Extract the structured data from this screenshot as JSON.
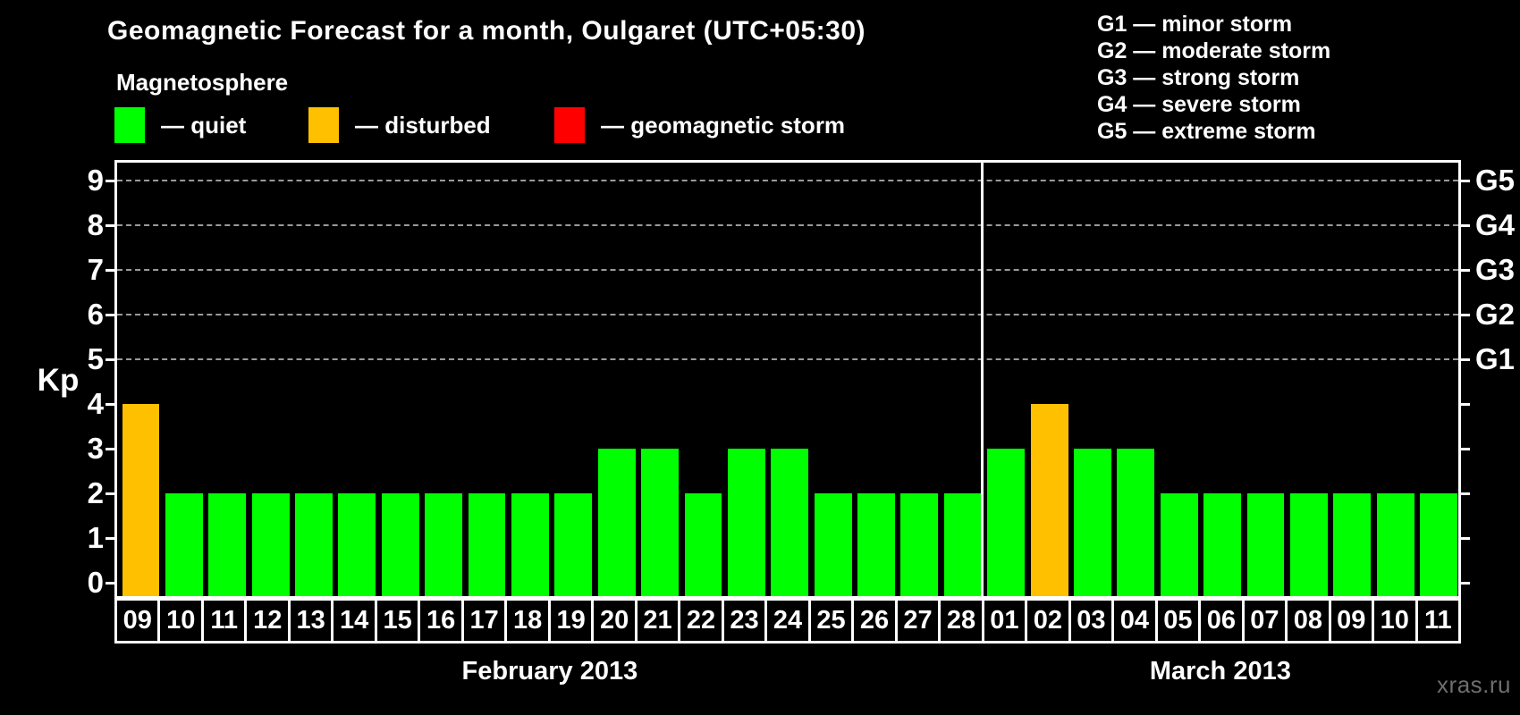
{
  "header": {
    "title": "Geomagnetic Forecast for a month, Oulgaret (UTC+05:30)",
    "subtitle": "Magnetosphere"
  },
  "magnetosphere_legend": [
    {
      "status": "quiet",
      "label": "— quiet",
      "color": "#00FF00"
    },
    {
      "status": "disturbed",
      "label": "— disturbed",
      "color": "#FFC000"
    },
    {
      "status": "storm",
      "label": "— geomagnetic storm",
      "color": "#FF0000"
    }
  ],
  "storm_scale_legend": [
    "G1 — minor storm",
    "G2 — moderate storm",
    "G3 — strong storm",
    "G4 — severe storm",
    "G5 — extreme storm"
  ],
  "watermark": "xras.ru",
  "chart_data": {
    "type": "bar",
    "ylabel": "Kp",
    "ylim": [
      0,
      9
    ],
    "yticks": [
      0,
      1,
      2,
      3,
      4,
      5,
      6,
      7,
      8,
      9
    ],
    "gridlines_at": [
      5,
      6,
      7,
      8,
      9
    ],
    "grid_style": "dashed",
    "right_axis_labels": [
      {
        "kp": 5,
        "label": "G1"
      },
      {
        "kp": 6,
        "label": "G2"
      },
      {
        "kp": 7,
        "label": "G3"
      },
      {
        "kp": 8,
        "label": "G4"
      },
      {
        "kp": 9,
        "label": "G5"
      }
    ],
    "status_colors": {
      "quiet": "#00FF00",
      "disturbed": "#FFC000",
      "storm": "#FF0000"
    },
    "months": [
      {
        "label": "February 2013",
        "days": [
          {
            "day": "09",
            "kp": 4,
            "status": "disturbed"
          },
          {
            "day": "10",
            "kp": 2,
            "status": "quiet"
          },
          {
            "day": "11",
            "kp": 2,
            "status": "quiet"
          },
          {
            "day": "12",
            "kp": 2,
            "status": "quiet"
          },
          {
            "day": "13",
            "kp": 2,
            "status": "quiet"
          },
          {
            "day": "14",
            "kp": 2,
            "status": "quiet"
          },
          {
            "day": "15",
            "kp": 2,
            "status": "quiet"
          },
          {
            "day": "16",
            "kp": 2,
            "status": "quiet"
          },
          {
            "day": "17",
            "kp": 2,
            "status": "quiet"
          },
          {
            "day": "18",
            "kp": 2,
            "status": "quiet"
          },
          {
            "day": "19",
            "kp": 2,
            "status": "quiet"
          },
          {
            "day": "20",
            "kp": 3,
            "status": "quiet"
          },
          {
            "day": "21",
            "kp": 3,
            "status": "quiet"
          },
          {
            "day": "22",
            "kp": 2,
            "status": "quiet"
          },
          {
            "day": "23",
            "kp": 3,
            "status": "quiet"
          },
          {
            "day": "24",
            "kp": 3,
            "status": "quiet"
          },
          {
            "day": "25",
            "kp": 2,
            "status": "quiet"
          },
          {
            "day": "26",
            "kp": 2,
            "status": "quiet"
          },
          {
            "day": "27",
            "kp": 2,
            "status": "quiet"
          },
          {
            "day": "28",
            "kp": 2,
            "status": "quiet"
          }
        ]
      },
      {
        "label": "March 2013",
        "days": [
          {
            "day": "01",
            "kp": 3,
            "status": "quiet"
          },
          {
            "day": "02",
            "kp": 4,
            "status": "disturbed"
          },
          {
            "day": "03",
            "kp": 3,
            "status": "quiet"
          },
          {
            "day": "04",
            "kp": 3,
            "status": "quiet"
          },
          {
            "day": "05",
            "kp": 2,
            "status": "quiet"
          },
          {
            "day": "06",
            "kp": 2,
            "status": "quiet"
          },
          {
            "day": "07",
            "kp": 2,
            "status": "quiet"
          },
          {
            "day": "08",
            "kp": 2,
            "status": "quiet"
          },
          {
            "day": "09",
            "kp": 2,
            "status": "quiet"
          },
          {
            "day": "10",
            "kp": 2,
            "status": "quiet"
          },
          {
            "day": "11",
            "kp": 2,
            "status": "quiet"
          }
        ]
      }
    ]
  }
}
